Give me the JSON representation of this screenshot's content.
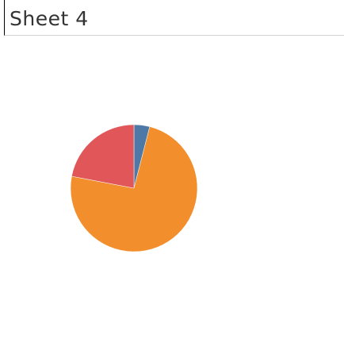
{
  "sheet": {
    "title": "Sheet 4"
  },
  "chart_data": {
    "type": "pie",
    "title": "Sheet 4",
    "slices": [
      {
        "value": 4,
        "color": "#4e79a7"
      },
      {
        "value": 74,
        "color": "#f28e2b"
      },
      {
        "value": 22,
        "color": "#e15759"
      }
    ],
    "start_angle_deg": 0,
    "direction": "clockwise",
    "legend": "none"
  }
}
